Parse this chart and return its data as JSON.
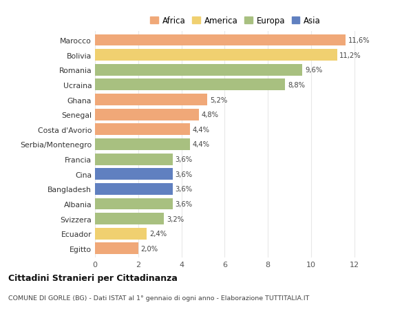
{
  "categories": [
    "Marocco",
    "Bolivia",
    "Romania",
    "Ucraina",
    "Ghana",
    "Senegal",
    "Costa d'Avorio",
    "Serbia/Montenegro",
    "Francia",
    "Cina",
    "Bangladesh",
    "Albania",
    "Svizzera",
    "Ecuador",
    "Egitto"
  ],
  "values": [
    11.6,
    11.2,
    9.6,
    8.8,
    5.2,
    4.8,
    4.4,
    4.4,
    3.6,
    3.6,
    3.6,
    3.6,
    3.2,
    2.4,
    2.0
  ],
  "labels": [
    "11,6%",
    "11,2%",
    "9,6%",
    "8,8%",
    "5,2%",
    "4,8%",
    "4,4%",
    "4,4%",
    "3,6%",
    "3,6%",
    "3,6%",
    "3,6%",
    "3,2%",
    "2,4%",
    "2,0%"
  ],
  "continents": [
    "Africa",
    "America",
    "Europa",
    "Europa",
    "Africa",
    "Africa",
    "Africa",
    "Europa",
    "Europa",
    "Asia",
    "Asia",
    "Europa",
    "Europa",
    "America",
    "Africa"
  ],
  "continent_colors": {
    "Africa": "#F0A878",
    "America": "#F0D070",
    "Europa": "#A8C080",
    "Asia": "#6080C0"
  },
  "legend_order": [
    "Africa",
    "America",
    "Europa",
    "Asia"
  ],
  "title": "Cittadini Stranieri per Cittadinanza",
  "subtitle": "COMUNE DI GORLE (BG) - Dati ISTAT al 1° gennaio di ogni anno - Elaborazione TUTTITALIA.IT",
  "xlim": [
    0,
    13
  ],
  "xticks": [
    0,
    2,
    4,
    6,
    8,
    10,
    12
  ],
  "background_color": "#ffffff",
  "grid_color": "#e8e8e8",
  "bar_height": 0.78
}
